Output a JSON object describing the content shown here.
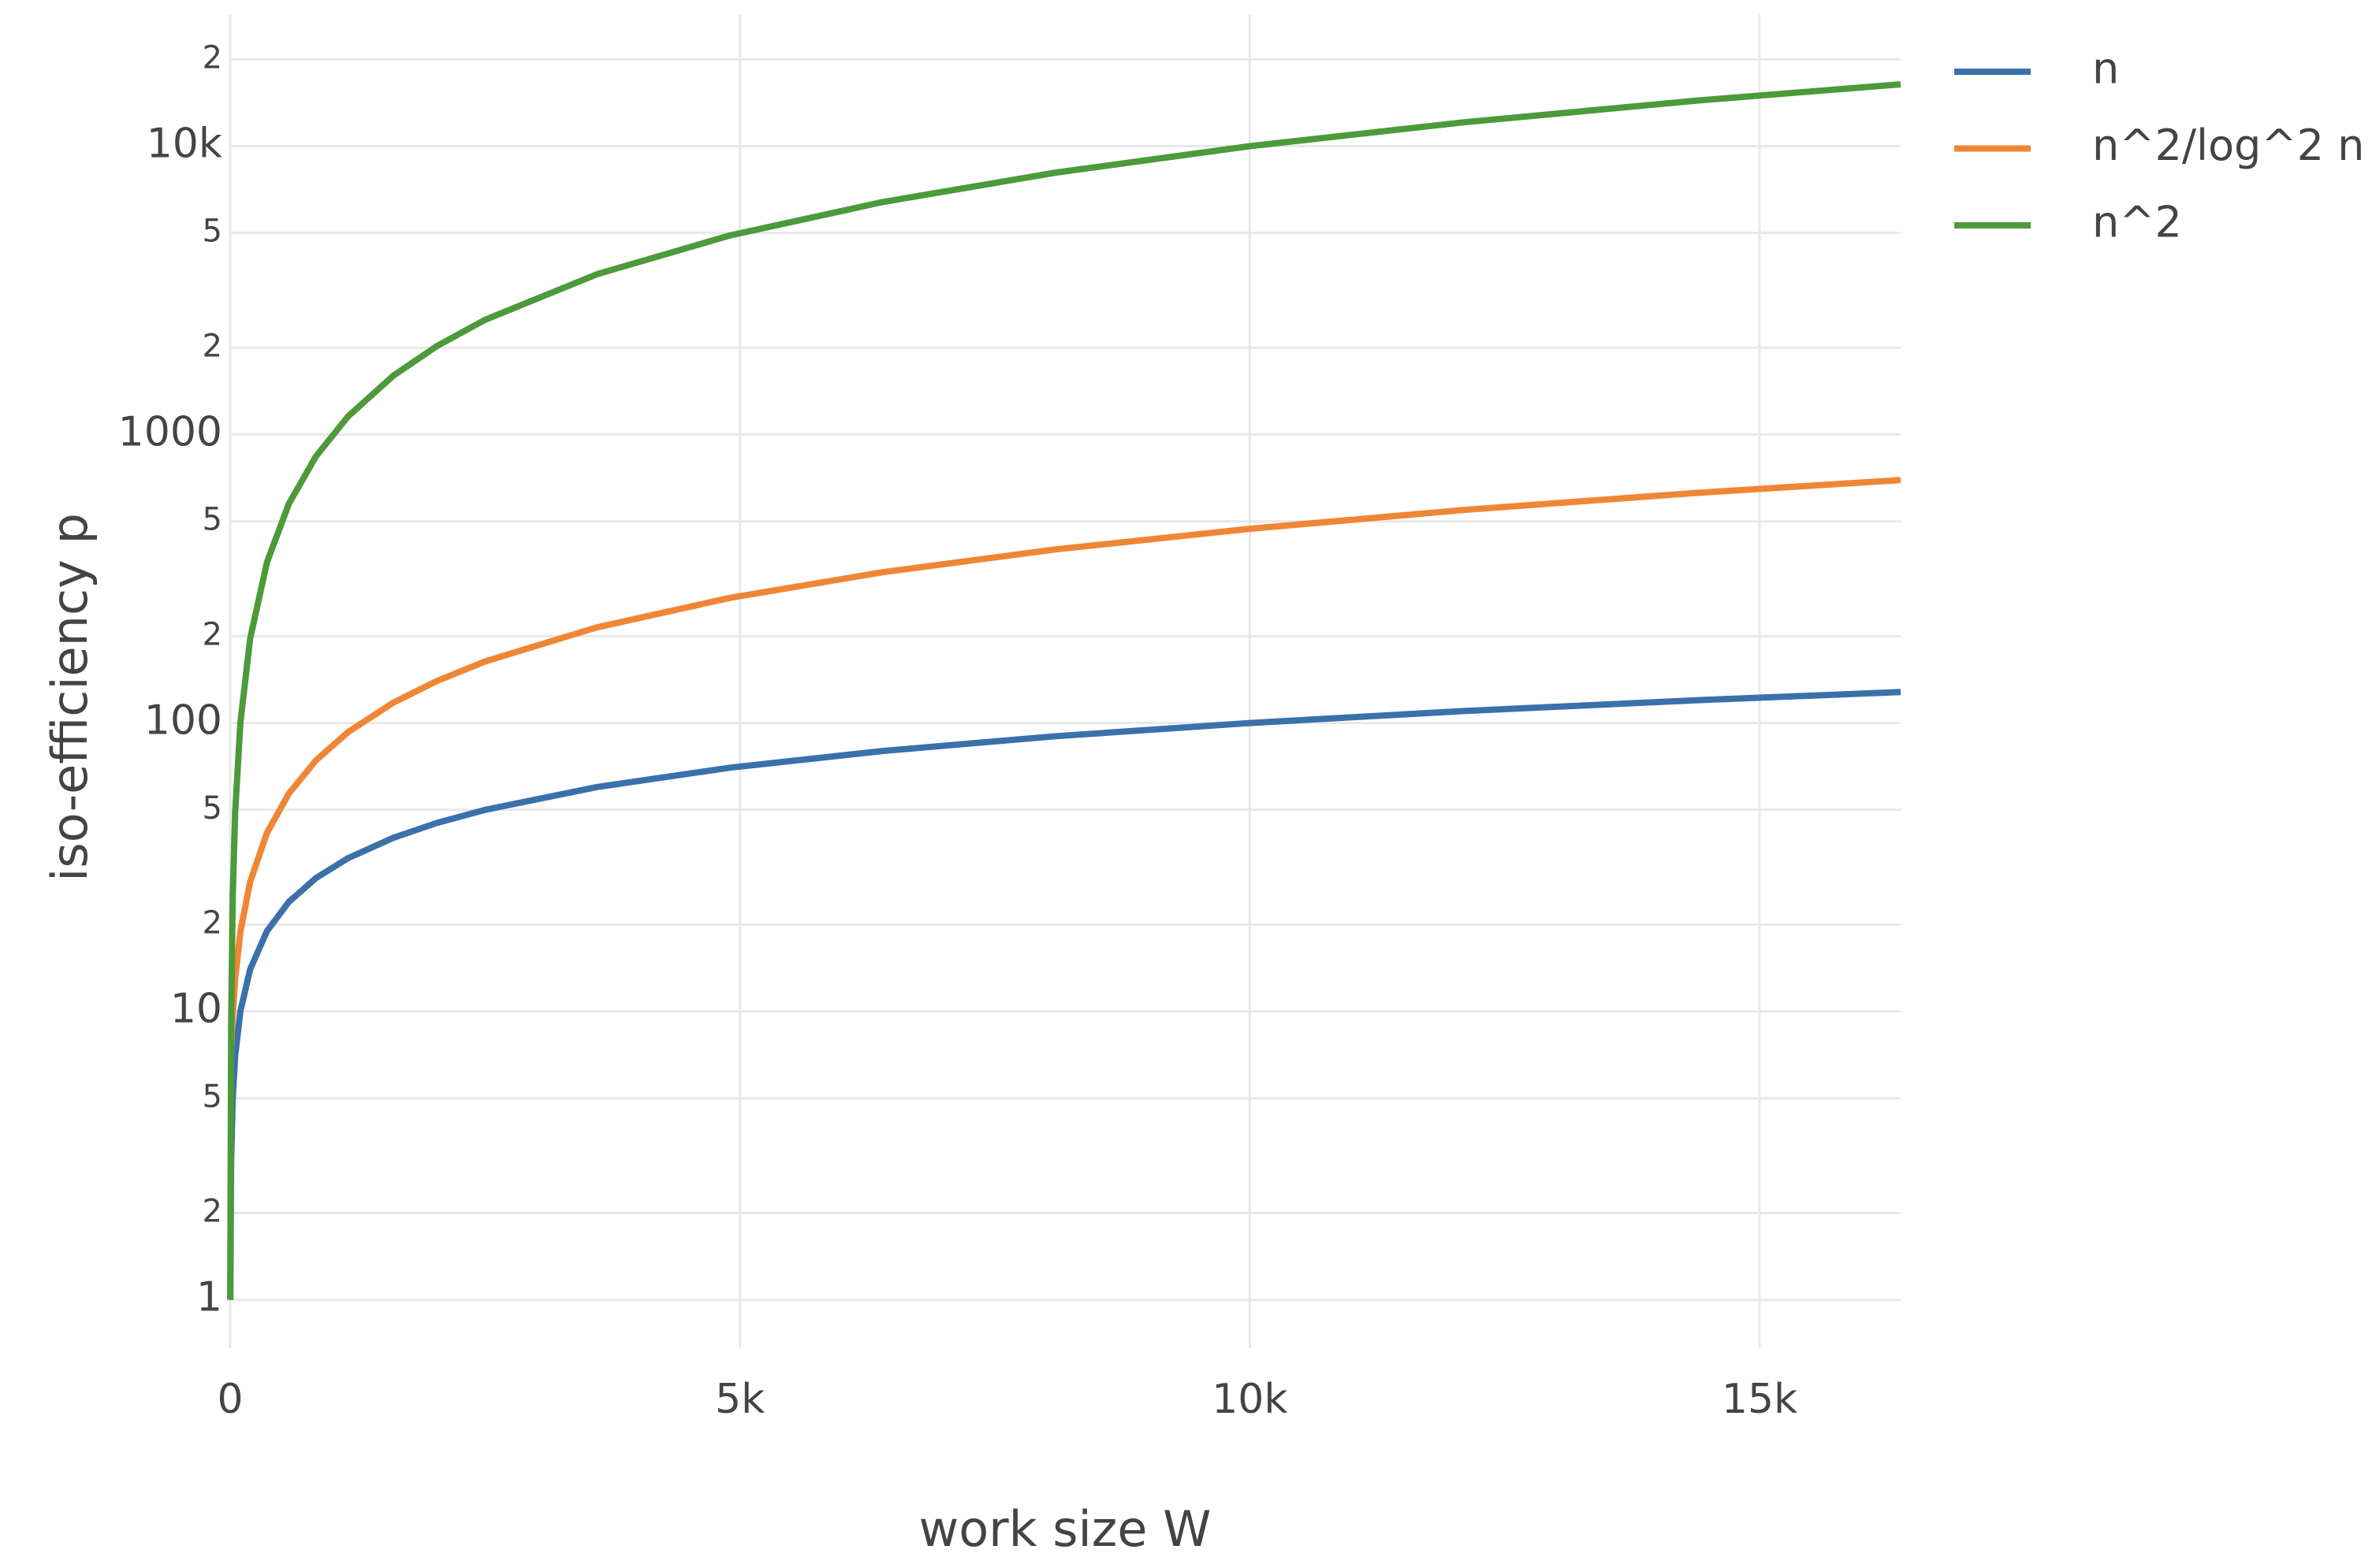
{
  "chart_data": {
    "type": "line",
    "x_label": "work size W",
    "y_label": "iso-efficiency p",
    "x": [
      1,
      9,
      25,
      49,
      100,
      196,
      361,
      576,
      841,
      1156,
      1600,
      2025,
      2500,
      3600,
      4900,
      6400,
      8100,
      10000,
      12100,
      14400,
      16384
    ],
    "series": [
      {
        "name": "n",
        "color": "#3b71aa",
        "values": [
          1,
          3,
          5,
          7,
          10,
          14,
          19,
          24,
          29,
          34,
          40,
          45,
          50,
          60,
          70,
          80,
          90,
          100,
          110,
          120,
          128
        ]
      },
      {
        "name": "n^2/log^2 n",
        "color": "#ef8636",
        "values": [
          null,
          7.46,
          9.65,
          12.94,
          18.86,
          28.14,
          41.64,
          57.0,
          74.2,
          93.0,
          117.6,
          139.7,
          163.4,
          214.8,
          271.5,
          333.3,
          400,
          471.5,
          547.8,
          628.3,
          696.0
        ]
      },
      {
        "name": "n^2",
        "color": "#4c9a3a",
        "values": [
          1,
          9,
          25,
          49,
          100,
          196,
          361,
          576,
          841,
          1156,
          1600,
          2025,
          2500,
          3600,
          4900,
          6400,
          8100,
          10000,
          12100,
          14400,
          16384
        ]
      }
    ],
    "xlim": [
      0,
      16384
    ],
    "xticks": [
      0,
      {
        "value": 5000,
        "label": "5k"
      },
      {
        "value": 10000,
        "label": "10k"
      },
      {
        "value": 15000,
        "label": "15k"
      }
    ],
    "ylim": [
      0.68,
      28500
    ],
    "y_scale": "log",
    "yticks": [
      1,
      2,
      5,
      10,
      {
        "value": 20,
        "label": "2"
      },
      {
        "value": 50,
        "label": "5"
      },
      100,
      {
        "value": 200,
        "label": "2"
      },
      {
        "value": 500,
        "label": "5"
      },
      1000,
      {
        "value": 2000,
        "label": "2"
      },
      {
        "value": 5000,
        "label": "5"
      },
      {
        "value": 10000,
        "label": "10k"
      },
      {
        "value": 20000,
        "label": "2"
      }
    ],
    "grid": true,
    "legend": "top-right"
  }
}
